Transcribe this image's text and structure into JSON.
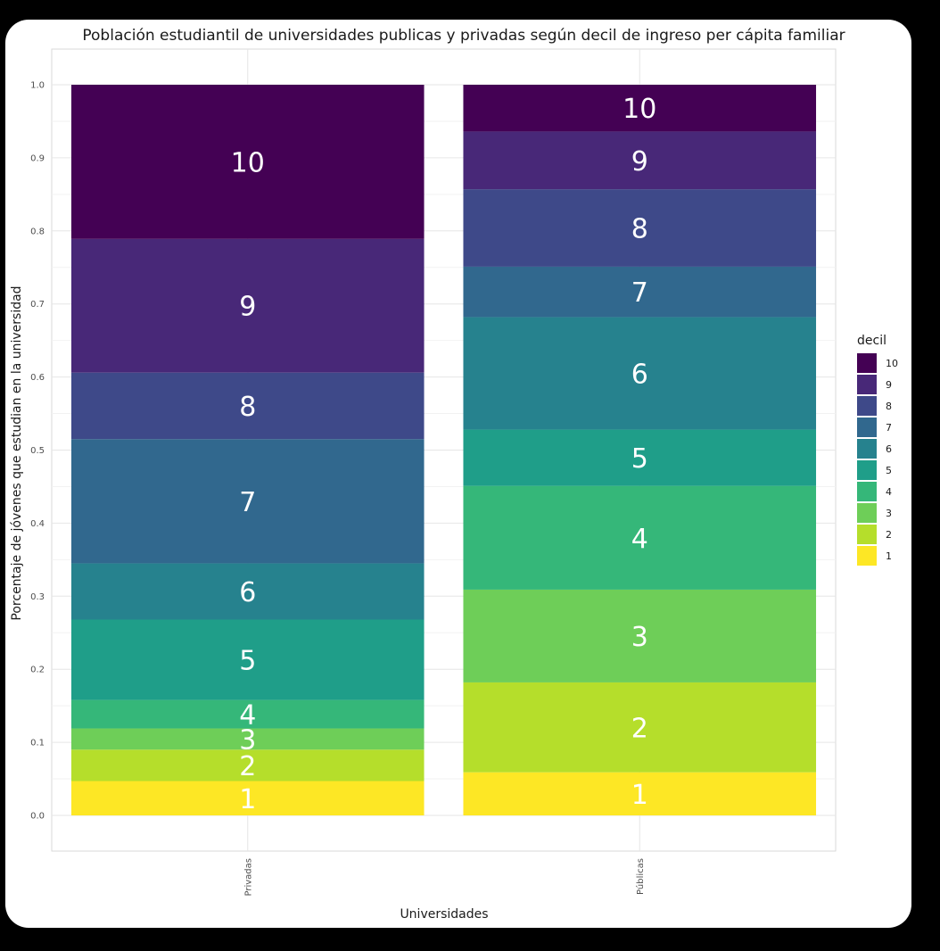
{
  "chart_data": {
    "type": "bar",
    "stacked": true,
    "title": "Población estudiantil de universidades publicas y privadas según decil de ingreso per cápita familiar",
    "xlabel": "Universidades",
    "ylabel": "Porcentaje de jóvenes que estudian en la universidad",
    "ylim": [
      0,
      1
    ],
    "yticks": [
      "0.0",
      "0.1",
      "0.2",
      "0.3",
      "0.4",
      "0.5",
      "0.6",
      "0.7",
      "0.8",
      "0.9",
      "1.0"
    ],
    "categories": [
      "Privadas",
      "Públicas"
    ],
    "legend": {
      "title": "decil",
      "position": "right"
    },
    "grid": true,
    "series": [
      {
        "name": "1",
        "color": "#fde725",
        "values": [
          0.047,
          0.059
        ]
      },
      {
        "name": "2",
        "color": "#b5de2b",
        "values": [
          0.043,
          0.123
        ]
      },
      {
        "name": "3",
        "color": "#6ece58",
        "values": [
          0.029,
          0.127
        ]
      },
      {
        "name": "4",
        "color": "#35b779",
        "values": [
          0.039,
          0.142
        ]
      },
      {
        "name": "5",
        "color": "#1f9e89",
        "values": [
          0.11,
          0.077
        ]
      },
      {
        "name": "6",
        "color": "#26828e",
        "values": [
          0.077,
          0.154
        ]
      },
      {
        "name": "7",
        "color": "#31688e",
        "values": [
          0.17,
          0.069
        ]
      },
      {
        "name": "8",
        "color": "#3e4989",
        "values": [
          0.091,
          0.106
        ]
      },
      {
        "name": "9",
        "color": "#482878",
        "values": [
          0.183,
          0.079
        ]
      },
      {
        "name": "10",
        "color": "#440154",
        "values": [
          0.211,
          0.064
        ]
      }
    ]
  }
}
